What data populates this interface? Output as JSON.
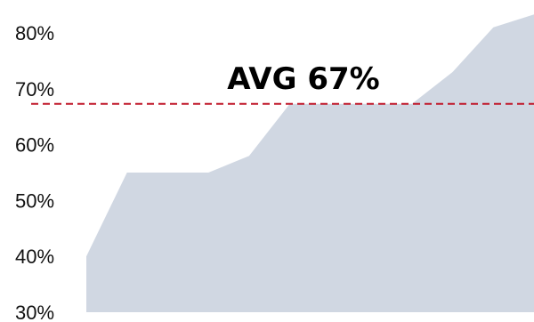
{
  "chart_data": {
    "type": "area",
    "x": [
      1,
      2,
      3,
      4,
      5,
      6,
      7,
      8,
      9,
      10,
      11,
      12
    ],
    "values": [
      40,
      55,
      55,
      55,
      58,
      67.3,
      67.3,
      67.3,
      67.3,
      73,
      81,
      83.3
    ],
    "ylim": [
      30,
      85
    ],
    "yticks": [
      30,
      40,
      50,
      60,
      70,
      80
    ],
    "ytick_labels": [
      "30%",
      "40%",
      "50%",
      "60%",
      "70%",
      "80%"
    ],
    "grid": false,
    "area_color": "#d0d7e2",
    "reference_line": {
      "value": 67.3,
      "label": "AVG 67%",
      "color": "#c0182a",
      "style": "dashed"
    }
  }
}
